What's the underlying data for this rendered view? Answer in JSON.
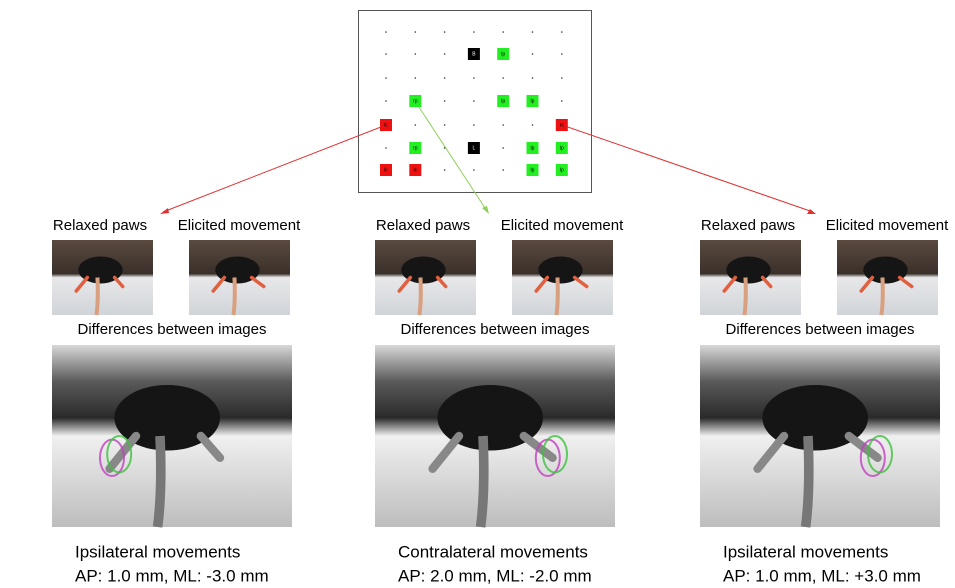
{
  "grid_map": {
    "markers": [
      {
        "col": 3,
        "row": 1,
        "color": "black",
        "label": "B"
      },
      {
        "col": 4,
        "row": 1,
        "color": "green",
        "label": "lp"
      },
      {
        "col": 1,
        "row": 3,
        "color": "green",
        "label": "rp"
      },
      {
        "col": 4,
        "row": 3,
        "color": "green",
        "label": "lp"
      },
      {
        "col": 5,
        "row": 3,
        "color": "green",
        "label": "lp"
      },
      {
        "col": 0,
        "row": 4,
        "color": "red",
        "label": "lc"
      },
      {
        "col": 6,
        "row": 4,
        "color": "red",
        "label": "rc"
      },
      {
        "col": 1,
        "row": 5,
        "color": "green",
        "label": "rp"
      },
      {
        "col": 3,
        "row": 5,
        "color": "black",
        "label": "L"
      },
      {
        "col": 5,
        "row": 5,
        "color": "green",
        "label": "lp"
      },
      {
        "col": 6,
        "row": 5,
        "color": "green",
        "label": "lp"
      },
      {
        "col": 0,
        "row": 6,
        "color": "red",
        "label": "lc"
      },
      {
        "col": 1,
        "row": 6,
        "color": "red",
        "label": "lc"
      },
      {
        "col": 5,
        "row": 6,
        "color": "green",
        "label": "lp"
      },
      {
        "col": 6,
        "row": 6,
        "color": "green",
        "label": "lp"
      }
    ]
  },
  "panels": [
    {
      "relaxed": "Relaxed paws",
      "elicited": "Elicited movement",
      "differences": "Differences between images",
      "caption": "Ipsilateral movements",
      "coordinates": "AP: 1.0 mm, ML: -3.0 mm"
    },
    {
      "relaxed": "Relaxed paws",
      "elicited": "Elicited movement",
      "differences": "Differences between images",
      "caption": "Contralateral movements",
      "coordinates": "AP: 2.0 mm, ML: -2.0 mm"
    },
    {
      "relaxed": "Relaxed paws",
      "elicited": "Elicited movement",
      "differences": "Differences between images",
      "caption": "Ipsilateral movements",
      "coordinates": "AP: 1.0 mm, ML: +3.0 mm"
    }
  ]
}
